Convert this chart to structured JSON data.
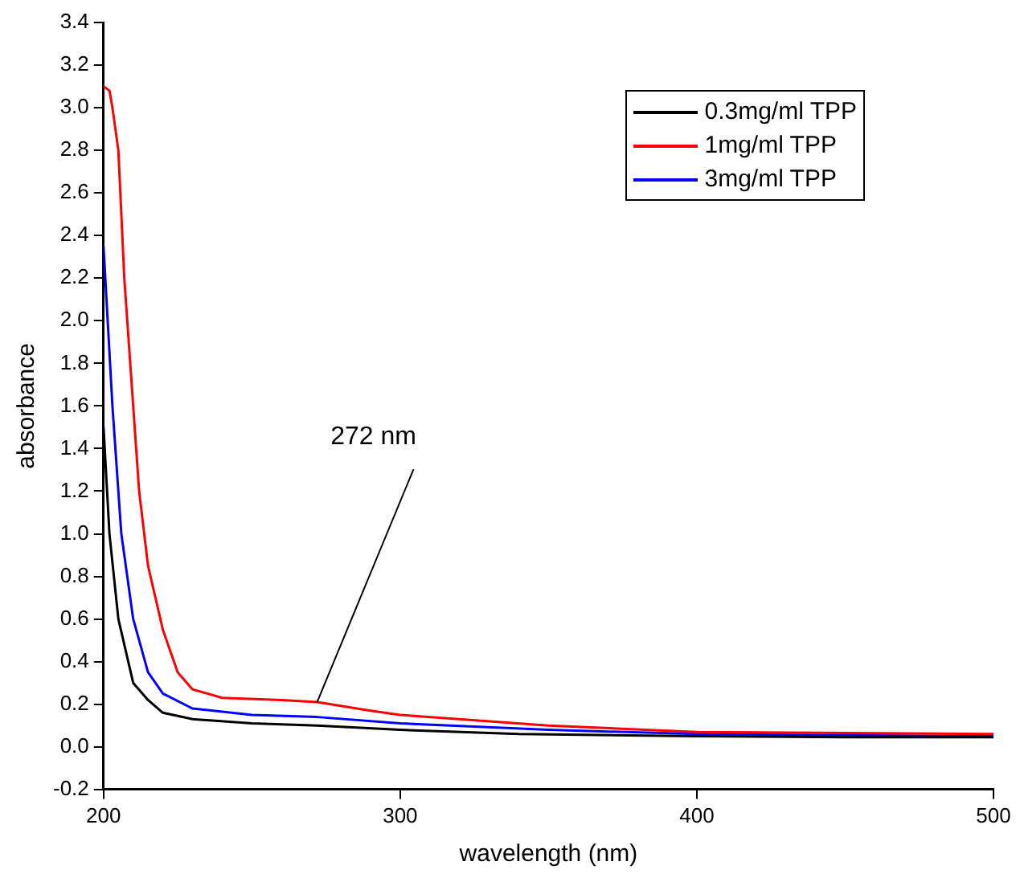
{
  "chart_data": {
    "type": "line",
    "xlabel": "wavelength (nm)",
    "ylabel": "absorbance",
    "xlim": [
      200,
      500
    ],
    "xticks": [
      200,
      300,
      400,
      500
    ],
    "ylim": [
      -0.2,
      3.4
    ],
    "yticks": [
      -0.2,
      {
        "value": 0,
        "label": "0.0"
      },
      0.2,
      0.4,
      0.6,
      0.8,
      {
        "value": 1,
        "label": "1.0"
      },
      1.2,
      1.4,
      1.6,
      1.8,
      {
        "value": 2,
        "label": "2.0"
      },
      2.2,
      2.4,
      2.6,
      2.8,
      {
        "value": 3,
        "label": "3.0"
      },
      3.2,
      3.4
    ],
    "grid": false,
    "legend": "top right",
    "marker": "none",
    "line_style": "solid",
    "annotations": [
      {
        "text": "272 nm",
        "x": 272,
        "y": 0.21
      }
    ],
    "series": [
      {
        "name": "0.3mg/ml TPP",
        "color": "#000000",
        "x": [
          200,
          202,
          205,
          210,
          215,
          220,
          230,
          250,
          272,
          300,
          340,
          400,
          450,
          500
        ],
        "values": [
          1.5,
          1.0,
          0.6,
          0.3,
          0.22,
          0.16,
          0.13,
          0.11,
          0.1,
          0.08,
          0.06,
          0.05,
          0.045,
          0.045
        ]
      },
      {
        "name": "1mg/ml TPP",
        "color": "#ff0000",
        "x": [
          200,
          202,
          203,
          205,
          207,
          210,
          212,
          215,
          220,
          225,
          230,
          240,
          260,
          272,
          290,
          300,
          350,
          400,
          450,
          500
        ],
        "values": [
          3.1,
          3.08,
          3.0,
          2.8,
          2.2,
          1.6,
          1.2,
          0.85,
          0.55,
          0.35,
          0.27,
          0.23,
          0.22,
          0.21,
          0.17,
          0.15,
          0.1,
          0.07,
          0.065,
          0.06
        ]
      },
      {
        "name": "3mg/ml TPP",
        "color": "#0000ff",
        "x": [
          200,
          203,
          206,
          210,
          215,
          220,
          230,
          250,
          272,
          300,
          350,
          400,
          450,
          500
        ],
        "values": [
          2.35,
          1.6,
          1.0,
          0.6,
          0.35,
          0.25,
          0.18,
          0.15,
          0.14,
          0.11,
          0.08,
          0.06,
          0.055,
          0.05
        ]
      }
    ]
  }
}
